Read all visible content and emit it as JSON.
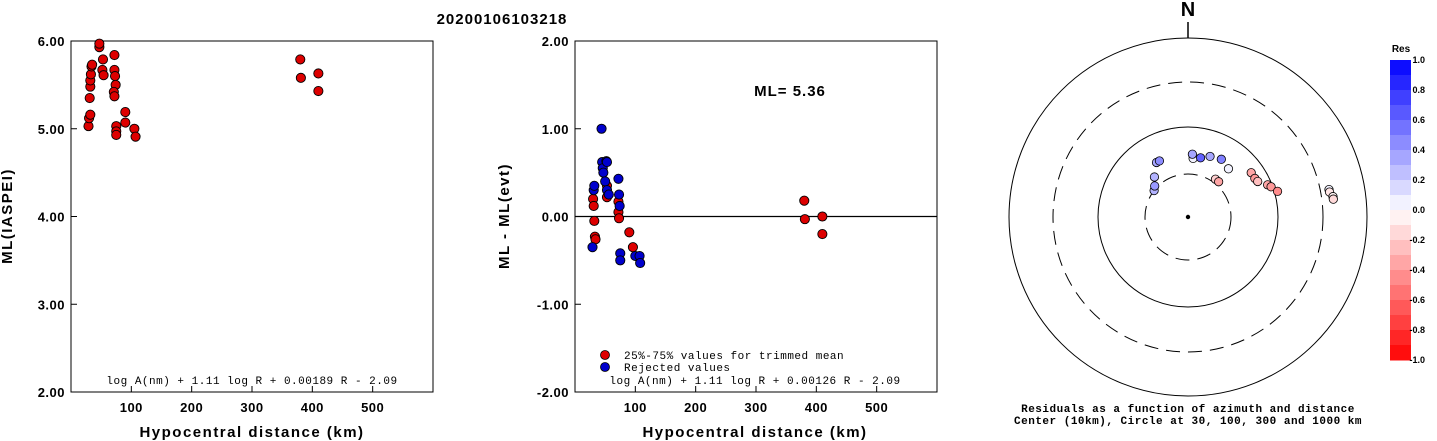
{
  "title": "20200106103218",
  "chart_data": [
    {
      "type": "scatter",
      "xlabel": "Hypocentral distance (km)",
      "ylabel": "ML(IASPEI)",
      "xlim": [
        0,
        600
      ],
      "ylim": [
        2.0,
        6.0
      ],
      "xticks": [
        "100",
        "200",
        "300",
        "400",
        "500"
      ],
      "yticks": [
        "2.00",
        "3.00",
        "4.00",
        "5.00",
        "6.00"
      ],
      "formula": "log A(nm) + 1.11 log R + 0.00189 R - 2.09",
      "series": [
        {
          "color": "#dd0000",
          "points": [
            [
              29,
              5.03
            ],
            [
              30,
              5.12
            ],
            [
              32,
              5.16
            ],
            [
              31,
              5.35
            ],
            [
              32,
              5.48
            ],
            [
              32,
              5.55
            ],
            [
              33,
              5.62
            ],
            [
              34,
              5.71
            ],
            [
              35,
              5.73
            ],
            [
              47,
              5.93
            ],
            [
              47,
              5.97
            ],
            [
              53,
              5.79
            ],
            [
              52,
              5.67
            ],
            [
              54,
              5.61
            ],
            [
              72,
              5.84
            ],
            [
              72,
              5.67
            ],
            [
              73,
              5.6
            ],
            [
              74,
              5.5
            ],
            [
              71,
              5.42
            ],
            [
              72,
              5.37
            ],
            [
              75,
              5.03
            ],
            [
              75,
              4.97
            ],
            [
              75,
              4.93
            ],
            [
              90,
              5.07
            ],
            [
              90,
              5.19
            ],
            [
              105,
              5.0
            ],
            [
              107,
              4.91
            ],
            [
              380,
              5.79
            ],
            [
              381,
              5.58
            ],
            [
              410,
              5.63
            ],
            [
              410,
              5.43
            ]
          ]
        }
      ]
    },
    {
      "type": "scatter",
      "xlabel": "Hypocentral distance (km)",
      "ylabel": "ML - ML(evt)",
      "xlim": [
        0,
        600
      ],
      "ylim": [
        -2.0,
        2.0
      ],
      "xticks": [
        "100",
        "200",
        "300",
        "400",
        "500"
      ],
      "yticks": [
        "-2.00",
        "-1.00",
        "0.00",
        "1.00",
        "2.00"
      ],
      "annotation": "ML= 5.36",
      "formula": "log A(nm) + 1.11 log R + 0.00126 R - 2.09",
      "series": [
        {
          "name": "25%-75% values for trimmed mean",
          "color": "#dd0000",
          "points": [
            [
              30,
              0.2
            ],
            [
              31,
              0.12
            ],
            [
              32,
              -0.05
            ],
            [
              33,
              -0.23
            ],
            [
              34,
              -0.26
            ],
            [
              53,
              0.22
            ],
            [
              53,
              0.35
            ],
            [
              72,
              0.17
            ],
            [
              72,
              0.05
            ],
            [
              73,
              -0.02
            ],
            [
              90,
              -0.18
            ],
            [
              96,
              -0.35
            ],
            [
              380,
              0.18
            ],
            [
              381,
              -0.03
            ],
            [
              410,
              0.0
            ],
            [
              410,
              -0.2
            ]
          ]
        },
        {
          "name": "Rejected values",
          "color": "#0000cc",
          "points": [
            [
              29,
              -0.35
            ],
            [
              31,
              0.3
            ],
            [
              32,
              0.35
            ],
            [
              44,
              1.0
            ],
            [
              45,
              0.62
            ],
            [
              46,
              0.55
            ],
            [
              47,
              0.5
            ],
            [
              50,
              0.4
            ],
            [
              52,
              0.63
            ],
            [
              53,
              0.62
            ],
            [
              53,
              0.3
            ],
            [
              56,
              0.25
            ],
            [
              72,
              0.43
            ],
            [
              73,
              0.25
            ],
            [
              74,
              0.12
            ],
            [
              75,
              -0.42
            ],
            [
              75,
              -0.5
            ],
            [
              100,
              -0.45
            ],
            [
              107,
              -0.45
            ],
            [
              108,
              -0.53
            ]
          ]
        }
      ]
    },
    {
      "type": "scatter",
      "subtype": "polar-residuals",
      "north": "N",
      "caption_lines": [
        "Residuals as a function of azimuth and distance",
        "Center (10km), Circle at 30, 100, 300 and 1000 km"
      ],
      "colorbar_title": "Res",
      "colorbar_ticks": [
        "1.0",
        "0.8",
        "0.6",
        "0.4",
        "0.2",
        "0.0",
        "-0.2",
        "-0.4",
        "-0.6",
        "-0.8",
        "-1.0"
      ],
      "points": [
        {
          "az": -30,
          "dist": 50,
          "res": 0.35
        },
        {
          "az": -27,
          "dist": 50,
          "res": 0.45
        },
        {
          "az": -40,
          "dist": 38,
          "res": 0.3
        },
        {
          "az": -52,
          "dist": 30,
          "res": 0.3
        },
        {
          "az": -47,
          "dist": 32,
          "res": 0.4
        },
        {
          "az": 5,
          "dist": 45,
          "res": 0.05
        },
        {
          "az": 4,
          "dist": 50,
          "res": 0.35
        },
        {
          "az": 12,
          "dist": 47,
          "res": 0.62
        },
        {
          "az": 20,
          "dist": 52,
          "res": 0.35
        },
        {
          "az": 30,
          "dist": 55,
          "res": 0.5
        },
        {
          "az": 40,
          "dist": 50,
          "res": 0.05
        },
        {
          "az": 36,
          "dist": 33,
          "res": -0.18
        },
        {
          "az": 41,
          "dist": 33,
          "res": -0.35
        },
        {
          "az": 55,
          "dist": 72,
          "res": -0.35
        },
        {
          "az": 60,
          "dist": 72,
          "res": -0.4
        },
        {
          "az": 63,
          "dist": 74,
          "res": -0.25
        },
        {
          "az": 68,
          "dist": 90,
          "res": -0.35
        },
        {
          "az": 70,
          "dist": 96,
          "res": -0.4
        },
        {
          "az": 74,
          "dist": 108,
          "res": -0.45
        },
        {
          "az": 79,
          "dist": 380,
          "res": 0.05
        },
        {
          "az": 80,
          "dist": 381,
          "res": -0.1
        },
        {
          "az": 82,
          "dist": 410,
          "res": -0.05
        },
        {
          "az": 83,
          "dist": 410,
          "res": -0.15
        }
      ]
    }
  ]
}
